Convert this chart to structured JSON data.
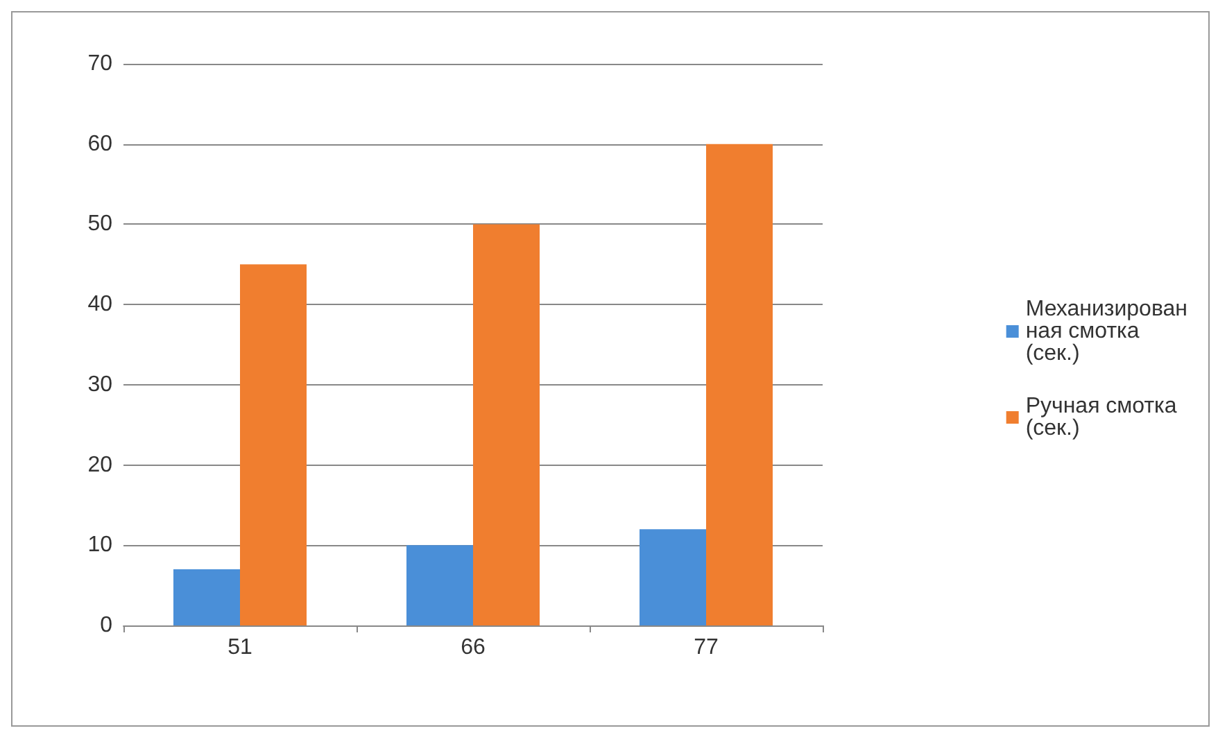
{
  "chart_data": {
    "type": "bar",
    "categories": [
      "51",
      "66",
      "77"
    ],
    "series": [
      {
        "name": "Механизированная смотка (сек.)",
        "color": "#4a8fd8",
        "values": [
          7,
          10,
          12
        ]
      },
      {
        "name": "Ручная смотка (сек.)",
        "color": "#f07e2f",
        "values": [
          45,
          50,
          60
        ]
      }
    ],
    "ylim": [
      0,
      70
    ],
    "yticks": [
      0,
      10,
      20,
      30,
      40,
      50,
      60,
      70
    ],
    "grid": "y",
    "legend": "right"
  }
}
